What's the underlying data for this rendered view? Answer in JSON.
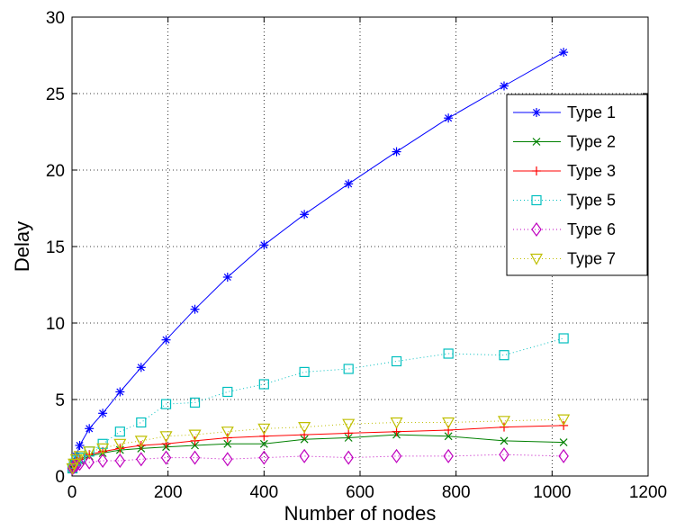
{
  "chart_data": {
    "type": "line",
    "title": "",
    "xlabel": "Number of nodes",
    "ylabel": "Delay",
    "xlim": [
      0,
      1200
    ],
    "ylim": [
      0,
      30
    ],
    "xticks": [
      0,
      200,
      400,
      600,
      800,
      1000,
      1200
    ],
    "yticks": [
      0,
      5,
      10,
      15,
      20,
      25,
      30
    ],
    "grid": true,
    "legend_position": "upper-right",
    "x": [
      1,
      4,
      9,
      16,
      36,
      64,
      100,
      144,
      196,
      256,
      324,
      400,
      484,
      576,
      676,
      784,
      900,
      1024
    ],
    "series": [
      {
        "name": "Type 1",
        "color": "#0000ff",
        "marker": "asterisk",
        "linestyle": "solid",
        "values": [
          0.5,
          0.9,
          1.3,
          2.0,
          3.1,
          4.1,
          5.5,
          7.1,
          8.9,
          10.9,
          13.0,
          15.1,
          17.1,
          19.1,
          21.2,
          23.4,
          25.5,
          27.7
        ]
      },
      {
        "name": "Type 2",
        "color": "#008000",
        "marker": "x",
        "linestyle": "solid",
        "values": [
          0.5,
          0.8,
          0.9,
          1.0,
          1.3,
          1.5,
          1.7,
          1.8,
          1.9,
          2.0,
          2.1,
          2.1,
          2.4,
          2.5,
          2.7,
          2.6,
          2.3,
          2.2
        ]
      },
      {
        "name": "Type 3",
        "color": "#ff0000",
        "marker": "plus",
        "linestyle": "solid",
        "values": [
          0.5,
          0.8,
          1.0,
          1.1,
          1.4,
          1.6,
          1.8,
          2.0,
          2.1,
          2.3,
          2.5,
          2.6,
          2.7,
          2.8,
          2.9,
          3.0,
          3.2,
          3.3
        ]
      },
      {
        "name": "Type 5",
        "color": "#00bfbf",
        "marker": "square",
        "linestyle": "dotted",
        "values": [
          0.5,
          0.8,
          1.0,
          1.2,
          1.6,
          2.1,
          2.9,
          3.5,
          4.7,
          4.8,
          5.5,
          6.0,
          6.8,
          7.0,
          7.5,
          8.0,
          7.9,
          9.0
        ]
      },
      {
        "name": "Type 6",
        "color": "#bf00bf",
        "marker": "diamond",
        "linestyle": "dotted",
        "values": [
          0.5,
          0.6,
          0.7,
          0.8,
          0.9,
          1.0,
          1.0,
          1.1,
          1.2,
          1.2,
          1.1,
          1.2,
          1.3,
          1.2,
          1.3,
          1.3,
          1.4,
          1.3
        ]
      },
      {
        "name": "Type 7",
        "color": "#bfbf00",
        "marker": "triangle-down",
        "linestyle": "dotted",
        "values": [
          0.5,
          0.8,
          1.1,
          1.3,
          1.6,
          1.8,
          2.1,
          2.3,
          2.6,
          2.7,
          2.9,
          3.1,
          3.2,
          3.4,
          3.5,
          3.5,
          3.6,
          3.7
        ]
      }
    ]
  }
}
